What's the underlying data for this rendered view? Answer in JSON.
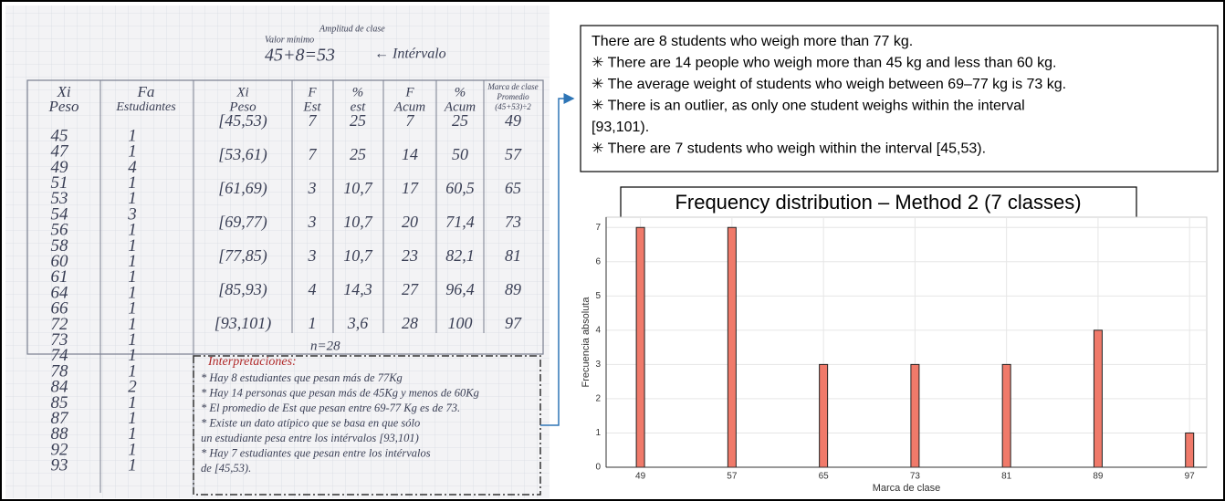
{
  "notes": {
    "min_value": "Valor mínimo",
    "class_width": "Amplitud de clase",
    "formula": "45+8=53",
    "interval": "← Intérvalo",
    "left_table": {
      "headers": [
        [
          "Xi",
          "Peso"
        ],
        [
          "Fa",
          "Estudiantes"
        ]
      ],
      "rows": [
        [
          "45",
          "1"
        ],
        [
          "47",
          "1"
        ],
        [
          "49",
          "4"
        ],
        [
          "51",
          "1"
        ],
        [
          "53",
          "1"
        ],
        [
          "54",
          "3"
        ],
        [
          "56",
          "1"
        ],
        [
          "58",
          "1"
        ],
        [
          "60",
          "1"
        ],
        [
          "61",
          "1"
        ],
        [
          "64",
          "1"
        ],
        [
          "66",
          "1"
        ],
        [
          "72",
          "1"
        ],
        [
          "73",
          "1"
        ],
        [
          "74",
          "1"
        ],
        [
          "78",
          "1"
        ],
        [
          "84",
          "2"
        ],
        [
          "85",
          "1"
        ],
        [
          "87",
          "1"
        ],
        [
          "88",
          "1"
        ],
        [
          "92",
          "1"
        ],
        [
          "93",
          "1"
        ]
      ]
    },
    "right_table": {
      "headers": [
        [
          "Xi",
          "Peso"
        ],
        [
          "F",
          "Est"
        ],
        [
          "%",
          "est"
        ],
        [
          "F",
          "Acum"
        ],
        [
          "%",
          "Acum"
        ],
        [
          "Marca de clase",
          "Promedio",
          "(45+53)÷2"
        ]
      ],
      "rows": [
        [
          "[45,53)",
          "7",
          "25",
          "7",
          "25",
          "49"
        ],
        [
          "[53,61)",
          "7",
          "25",
          "14",
          "50",
          "57"
        ],
        [
          "[61,69)",
          "3",
          "10,7",
          "17",
          "60,5",
          "65"
        ],
        [
          "[69,77)",
          "3",
          "10,7",
          "20",
          "71,4",
          "73"
        ],
        [
          "[77,85)",
          "3",
          "10,7",
          "23",
          "82,1",
          "81"
        ],
        [
          "[85,93)",
          "4",
          "14,3",
          "27",
          "96,4",
          "89"
        ],
        [
          "[93,101)",
          "1",
          "3,6",
          "28",
          "100",
          "97"
        ]
      ],
      "total": "n=28"
    },
    "interpretations_title": "Interpretaciones:",
    "interpretations": [
      "* Hay 8 estudiantes que pesan más de 77Kg",
      "* Hay 14 personas que pesan más de 45Kg y menos de 60Kg",
      "* El promedio de Est que pesan entre 69-77 Kg es de 73.",
      "* Existe un dato atípico que se basa en que sólo",
      "un estudiante pesa entre los intérvalos [93,101)",
      "* Hay 7 estudiantes que pesan entre los intérvalos",
      "de [45,53)."
    ]
  },
  "summary": [
    "There are 8 students who weigh more than 77 kg.",
    "✳ There are 14 people who weigh more than 45 kg and less than 60 kg.",
    "✳ The average weight of students who weigh between 69–77 kg is 73 kg.",
    "✳ There is an outlier, as only one student weighs within the interval",
    "[93,101).",
    "✳ There are 7 students who weigh within the interval [45,53)."
  ],
  "chart_data": {
    "type": "bar",
    "title": "Frequency distribution – Method 2 (7 classes)",
    "x_label": "Marca de clase",
    "y_label": "Frecuencia absoluta",
    "x": [
      49,
      57,
      65,
      73,
      81,
      89,
      97
    ],
    "values": [
      7,
      7,
      3,
      3,
      3,
      4,
      1
    ],
    "color": "#f07a6a",
    "edge_color": "#222222",
    "xlim": [
      46,
      98.5
    ],
    "xticks": [
      49,
      57,
      65,
      73,
      81,
      89,
      97
    ],
    "ylim": [
      0,
      7.3
    ],
    "yticks": [
      0,
      1,
      2,
      3,
      4,
      5,
      6,
      7
    ],
    "grid": true
  }
}
